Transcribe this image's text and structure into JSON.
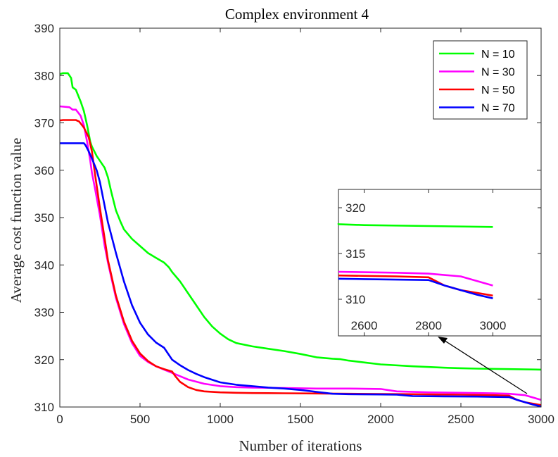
{
  "chart_data": {
    "type": "line",
    "title": "Complex environment 4",
    "xlabel": "Number of iterations",
    "ylabel": "Average cost function value",
    "xlim": [
      0,
      3000
    ],
    "ylim": [
      310,
      390
    ],
    "xticks": [
      0,
      500,
      1000,
      1500,
      2000,
      2500,
      3000
    ],
    "yticks": [
      310,
      320,
      330,
      340,
      350,
      360,
      370,
      380,
      390
    ],
    "grid": false,
    "legend_position": "top-right",
    "series": [
      {
        "name": "N = 10",
        "color": "#00ff00",
        "x": [
          0,
          20,
          50,
          70,
          80,
          100,
          130,
          150,
          170,
          190,
          200,
          230,
          250,
          280,
          300,
          320,
          350,
          380,
          400,
          450,
          500,
          550,
          600,
          650,
          680,
          700,
          750,
          800,
          850,
          900,
          950,
          1000,
          1050,
          1100,
          1200,
          1300,
          1400,
          1500,
          1600,
          1700,
          1750,
          1800,
          1900,
          2000,
          2200,
          2400,
          2500,
          2600,
          2800,
          3000
        ],
        "y": [
          380.3,
          380.5,
          380.5,
          379.5,
          377.5,
          377.0,
          374.5,
          372.5,
          369.5,
          366.0,
          365.0,
          363.0,
          362.0,
          360.5,
          358.5,
          355.5,
          351.5,
          349.0,
          347.5,
          345.5,
          344.0,
          342.5,
          341.5,
          340.5,
          339.5,
          338.5,
          336.5,
          334.0,
          331.5,
          329.0,
          327.0,
          325.5,
          324.3,
          323.5,
          322.8,
          322.3,
          321.8,
          321.2,
          320.5,
          320.2,
          320.1,
          319.8,
          319.4,
          319.0,
          318.6,
          318.3,
          318.2,
          318.1,
          318.0,
          317.9
        ]
      },
      {
        "name": "N = 30",
        "color": "#ff00ff",
        "x": [
          0,
          60,
          80,
          100,
          130,
          150,
          170,
          190,
          200,
          220,
          250,
          280,
          300,
          350,
          400,
          450,
          500,
          550,
          600,
          650,
          700,
          750,
          800,
          900,
          1000,
          1100,
          1200,
          1400,
          1600,
          1800,
          2000,
          2100,
          2300,
          2500,
          2700,
          2800,
          2900,
          3000
        ],
        "y": [
          373.5,
          373.3,
          372.8,
          372.8,
          371.5,
          369.5,
          366.0,
          362.0,
          359.5,
          356.0,
          350.5,
          344.0,
          340.5,
          333.0,
          327.5,
          323.5,
          320.8,
          319.5,
          318.6,
          317.9,
          317.2,
          316.5,
          315.8,
          314.9,
          314.4,
          314.2,
          314.1,
          314.0,
          313.9,
          313.9,
          313.8,
          313.3,
          313.1,
          313.0,
          312.9,
          312.8,
          312.5,
          311.5
        ]
      },
      {
        "name": "N = 50",
        "color": "#ff0000",
        "x": [
          0,
          20,
          100,
          120,
          150,
          180,
          200,
          220,
          250,
          280,
          300,
          350,
          400,
          450,
          500,
          550,
          600,
          650,
          700,
          720,
          750,
          800,
          850,
          900,
          1000,
          1100,
          1200,
          1400,
          1600,
          1800,
          2000,
          2200,
          2500,
          2700,
          2800,
          2850,
          2900,
          2950,
          3000
        ],
        "y": [
          370.5,
          370.6,
          370.6,
          370.3,
          369.0,
          367.0,
          364.0,
          359.0,
          352.0,
          345.5,
          341.0,
          333.5,
          328.0,
          324.0,
          321.3,
          319.7,
          318.6,
          318.0,
          317.5,
          316.5,
          315.3,
          314.2,
          313.6,
          313.3,
          313.1,
          313.0,
          312.95,
          312.9,
          312.85,
          312.8,
          312.75,
          312.7,
          312.6,
          312.5,
          312.4,
          311.5,
          311.0,
          310.7,
          310.4
        ]
      },
      {
        "name": "N = 70",
        "color": "#0000ff",
        "x": [
          0,
          150,
          160,
          180,
          200,
          230,
          250,
          300,
          350,
          400,
          450,
          500,
          550,
          600,
          650,
          700,
          750,
          800,
          850,
          900,
          1000,
          1100,
          1200,
          1300,
          1400,
          1500,
          1600,
          1700,
          1800,
          2000,
          2100,
          2200,
          2400,
          2600,
          2800,
          2850,
          2900,
          2950,
          3000
        ],
        "y": [
          365.7,
          365.7,
          365.3,
          364.0,
          362.5,
          360.0,
          357.5,
          349.0,
          342.5,
          336.5,
          331.5,
          327.8,
          325.3,
          323.6,
          322.5,
          320.0,
          318.8,
          317.8,
          317.0,
          316.3,
          315.2,
          314.7,
          314.4,
          314.1,
          313.9,
          313.6,
          313.2,
          312.8,
          312.7,
          312.65,
          312.6,
          312.3,
          312.25,
          312.2,
          312.1,
          311.5,
          311.0,
          310.5,
          310.1
        ]
      }
    ],
    "inset": {
      "xlim": [
        2520,
        3150
      ],
      "ylim": [
        306,
        322
      ],
      "xticks": [
        2600,
        2800,
        3000
      ],
      "yticks": [
        310,
        315,
        320
      ],
      "annotation": "arrow from inset to curve endpoints near x = 3000"
    }
  }
}
